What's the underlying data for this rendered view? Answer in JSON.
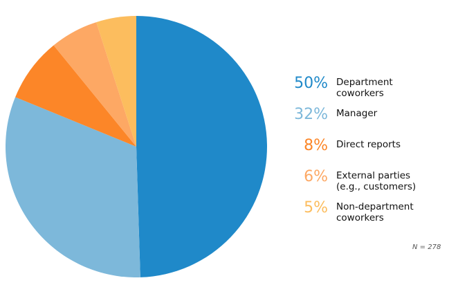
{
  "chart_data": {
    "type": "pie",
    "title": "",
    "categories": [
      "Department\ncoworkers",
      "Manager",
      "Direct reports",
      "External parties\n(e.g., customers)",
      "Non-department\ncoworkers"
    ],
    "values": [
      50,
      32,
      8,
      6,
      5
    ],
    "percent_labels": [
      "50%",
      "32%",
      "8%",
      "6%",
      "5%"
    ],
    "colors": [
      "#1f89c9",
      "#7db8da",
      "#fc8628",
      "#fda864",
      "#fcbd5e"
    ],
    "legend_position": "right",
    "note": "N = 278"
  }
}
